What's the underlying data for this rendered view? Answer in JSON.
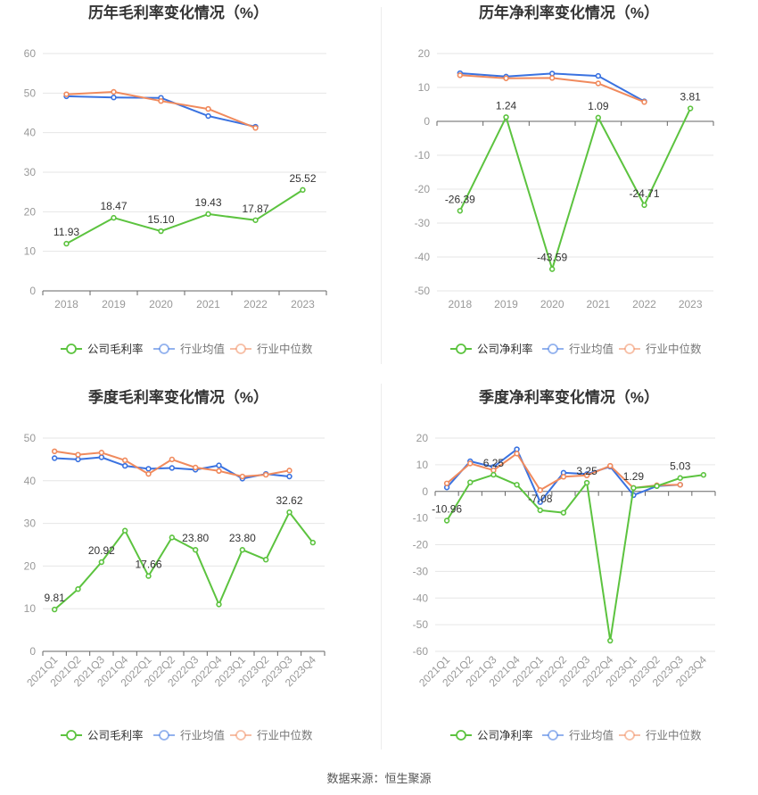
{
  "source_label": "数据来源：恒生聚源",
  "colors": {
    "company": "#5cc33f",
    "avg": "#3a72e0",
    "median": "#f08a5d",
    "grid": "#e6e6e6",
    "axis": "#999999",
    "text": "#333333"
  },
  "chart_data": [
    {
      "type": "line",
      "title": "历年毛利率变化情况（%）",
      "categories": [
        "2018",
        "2019",
        "2020",
        "2021",
        "2022",
        "2023"
      ],
      "ylim": [
        0,
        60
      ],
      "yticks": [
        0,
        10,
        20,
        30,
        40,
        50,
        60
      ],
      "grid": true,
      "legend": "bottom",
      "series": [
        {
          "name": "公司毛利率",
          "color": "#5cc33f",
          "values": [
            11.93,
            18.47,
            15.1,
            19.43,
            17.87,
            25.52
          ],
          "labels": [
            "11.93",
            "18.47",
            "15.10",
            "19.43",
            "17.87",
            "25.52"
          ]
        },
        {
          "name": "行业均值",
          "color": "#3a72e0",
          "values": [
            49.2,
            48.9,
            48.8,
            44.2,
            41.5,
            null
          ]
        },
        {
          "name": "行业中位数",
          "color": "#f08a5d",
          "values": [
            49.7,
            50.3,
            48.0,
            46.0,
            41.2,
            null
          ]
        }
      ]
    },
    {
      "type": "line",
      "title": "历年净利率变化情况（%）",
      "categories": [
        "2018",
        "2019",
        "2020",
        "2021",
        "2022",
        "2023"
      ],
      "ylim": [
        -50,
        20
      ],
      "yticks": [
        -50,
        -40,
        -30,
        -20,
        -10,
        0,
        10,
        20
      ],
      "grid": true,
      "legend": "bottom",
      "series": [
        {
          "name": "公司净利率",
          "color": "#5cc33f",
          "values": [
            -26.39,
            1.24,
            -43.59,
            1.09,
            -24.71,
            3.81
          ],
          "labels": [
            "-26.39",
            "1.24",
            "-43.59",
            "1.09",
            "-24.71",
            "3.81"
          ]
        },
        {
          "name": "行业均值",
          "color": "#3a72e0",
          "values": [
            14.2,
            13.2,
            14.1,
            13.4,
            5.9,
            null
          ]
        },
        {
          "name": "行业中位数",
          "color": "#f08a5d",
          "values": [
            13.6,
            12.7,
            12.8,
            11.2,
            5.7,
            null
          ]
        }
      ]
    },
    {
      "type": "line",
      "title": "季度毛利率变化情况（%）",
      "categories": [
        "2021Q1",
        "2021Q2",
        "2021Q3",
        "2021Q4",
        "2022Q1",
        "2022Q2",
        "2022Q3",
        "2022Q4",
        "2023Q1",
        "2023Q2",
        "2023Q3",
        "2023Q4"
      ],
      "ylim": [
        0,
        50
      ],
      "yticks": [
        0,
        10,
        20,
        30,
        40,
        50
      ],
      "grid": true,
      "legend": "bottom",
      "series": [
        {
          "name": "公司毛利率",
          "color": "#5cc33f",
          "values": [
            9.81,
            14.6,
            20.92,
            28.3,
            17.66,
            26.7,
            23.8,
            11.0,
            23.8,
            21.5,
            32.62,
            25.5
          ],
          "labels": [
            "9.81",
            "",
            "20.92",
            "",
            "17.66",
            "",
            "23.80",
            "",
            "23.80",
            "",
            "32.62",
            ""
          ]
        },
        {
          "name": "行业均值",
          "color": "#3a72e0",
          "values": [
            45.3,
            45.0,
            45.5,
            43.5,
            42.8,
            43.0,
            42.6,
            43.6,
            40.5,
            41.6,
            41.0,
            null
          ]
        },
        {
          "name": "行业中位数",
          "color": "#f08a5d",
          "values": [
            46.9,
            46.1,
            46.6,
            44.8,
            41.6,
            45.0,
            43.1,
            42.3,
            41.0,
            41.4,
            42.4,
            null
          ]
        }
      ]
    },
    {
      "type": "line",
      "title": "季度净利率变化情况（%）",
      "categories": [
        "2021Q1",
        "2021Q2",
        "2021Q3",
        "2021Q4",
        "2022Q1",
        "2022Q2",
        "2022Q3",
        "2022Q4",
        "2023Q1",
        "2023Q2",
        "2023Q3",
        "2023Q4"
      ],
      "ylim": [
        -60,
        20
      ],
      "yticks": [
        -60,
        -50,
        -40,
        -30,
        -20,
        -10,
        0,
        10,
        20
      ],
      "grid": true,
      "legend": "bottom",
      "series": [
        {
          "name": "公司净利率",
          "color": "#5cc33f",
          "values": [
            -10.96,
            3.4,
            6.25,
            2.5,
            -7.08,
            -8.0,
            3.25,
            -56.0,
            1.29,
            2.0,
            5.03,
            6.2
          ],
          "labels": [
            "-10.96",
            "",
            "6.25",
            "",
            "-7.08",
            "",
            "3.25",
            "",
            "1.29",
            "",
            "5.03",
            ""
          ]
        },
        {
          "name": "行业均值",
          "color": "#3a72e0",
          "values": [
            1.5,
            11.3,
            9.2,
            15.8,
            -4.0,
            7.0,
            6.5,
            9.3,
            -1.4,
            2.0,
            2.5,
            null
          ]
        },
        {
          "name": "行业中位数",
          "color": "#f08a5d",
          "values": [
            3.0,
            10.5,
            7.9,
            14.2,
            0.5,
            5.5,
            6.0,
            9.6,
            1.3,
            2.3,
            2.5,
            null
          ]
        }
      ]
    }
  ]
}
